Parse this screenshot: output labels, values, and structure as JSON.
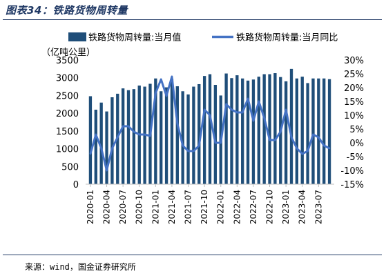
{
  "figure_title": "图表34：铁路货物周转量",
  "source": "来源：wind，国金证券研究所",
  "colors": {
    "bar": "#1f4e79",
    "line": "#4472c4",
    "rule": "#1f3864"
  },
  "chart_data": {
    "type": "bar",
    "ylabel": "（亿吨公里）",
    "ylim": [
      0,
      3500
    ],
    "yticks": [
      "0",
      "500",
      "1000",
      "1500",
      "2000",
      "2500",
      "3000",
      "3500"
    ],
    "y2lim": [
      -15,
      30
    ],
    "y2ticks": [
      "-15%",
      "-10%",
      "-5%",
      "0%",
      "5%",
      "10%",
      "15%",
      "20%",
      "25%",
      "30%"
    ],
    "legend_position": "top",
    "grid": false,
    "x_tick_labels": [
      "2020-01",
      "2020-04",
      "2020-07",
      "2020-10",
      "2021-01",
      "2021-04",
      "2021-07",
      "2021-10",
      "2022-01",
      "2022-04",
      "2022-07",
      "2022-10",
      "2023-01",
      "2023-04",
      "2023-07"
    ],
    "categories": [
      "2020-01",
      "2020-02",
      "2020-03",
      "2020-04",
      "2020-05",
      "2020-06",
      "2020-07",
      "2020-08",
      "2020-09",
      "2020-10",
      "2020-11",
      "2020-12",
      "2021-01",
      "2021-02",
      "2021-03",
      "2021-04",
      "2021-05",
      "2021-06",
      "2021-07",
      "2021-08",
      "2021-09",
      "2021-10",
      "2021-11",
      "2021-12",
      "2022-01",
      "2022-02",
      "2022-03",
      "2022-04",
      "2022-05",
      "2022-06",
      "2022-07",
      "2022-08",
      "2022-09",
      "2022-10",
      "2022-11",
      "2022-12",
      "2023-01",
      "2023-02",
      "2023-03",
      "2023-04",
      "2023-05",
      "2023-06",
      "2023-07",
      "2023-08",
      "2023-09"
    ],
    "series": [
      {
        "name": "铁路货物周转量:当月值",
        "kind": "bar",
        "values": [
          2480,
          2100,
          2300,
          2050,
          2450,
          2550,
          2700,
          2650,
          2680,
          2780,
          2750,
          2830,
          2980,
          2620,
          2730,
          2970,
          2760,
          2620,
          2530,
          2750,
          2820,
          3050,
          3100,
          2800,
          2500,
          3120,
          2990,
          3070,
          2980,
          2920,
          2950,
          3030,
          3100,
          3100,
          3130,
          3020,
          2900,
          3250,
          2980,
          3030,
          2850,
          2980,
          2980,
          2980,
          2960
        ]
      },
      {
        "name": "铁路货物周转量:当月同比",
        "kind": "line",
        "axis": "right",
        "values": [
          -4,
          3,
          -2,
          -10,
          -2,
          2,
          6,
          6,
          4,
          3,
          3,
          2.5,
          18,
          23,
          17,
          24,
          7,
          -1,
          -3,
          -3,
          -1,
          12,
          10,
          0,
          0,
          14,
          12,
          11,
          11,
          16,
          8,
          15,
          9,
          1,
          1,
          4,
          12,
          2,
          -2,
          -4,
          -3,
          3,
          2,
          -1,
          -2
        ]
      }
    ]
  }
}
